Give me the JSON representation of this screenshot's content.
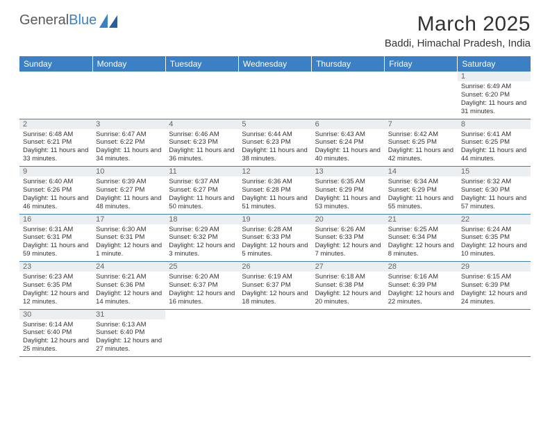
{
  "brand": {
    "word1": "General",
    "word2": "Blue"
  },
  "title": "March 2025",
  "location": "Baddi, Himachal Pradesh, India",
  "colors": {
    "accent": "#3b7fc4",
    "text": "#333333",
    "muted": "#666666",
    "headerRowBg": "#eceff1"
  },
  "dayHeaders": [
    "Sunday",
    "Monday",
    "Tuesday",
    "Wednesday",
    "Thursday",
    "Friday",
    "Saturday"
  ],
  "weeks": [
    [
      {
        "n": "",
        "sr": "",
        "ss": "",
        "dl": ""
      },
      {
        "n": "",
        "sr": "",
        "ss": "",
        "dl": ""
      },
      {
        "n": "",
        "sr": "",
        "ss": "",
        "dl": ""
      },
      {
        "n": "",
        "sr": "",
        "ss": "",
        "dl": ""
      },
      {
        "n": "",
        "sr": "",
        "ss": "",
        "dl": ""
      },
      {
        "n": "",
        "sr": "",
        "ss": "",
        "dl": ""
      },
      {
        "n": "1",
        "sr": "Sunrise: 6:49 AM",
        "ss": "Sunset: 6:20 PM",
        "dl": "Daylight: 11 hours and 31 minutes."
      }
    ],
    [
      {
        "n": "2",
        "sr": "Sunrise: 6:48 AM",
        "ss": "Sunset: 6:21 PM",
        "dl": "Daylight: 11 hours and 33 minutes."
      },
      {
        "n": "3",
        "sr": "Sunrise: 6:47 AM",
        "ss": "Sunset: 6:22 PM",
        "dl": "Daylight: 11 hours and 34 minutes."
      },
      {
        "n": "4",
        "sr": "Sunrise: 6:46 AM",
        "ss": "Sunset: 6:23 PM",
        "dl": "Daylight: 11 hours and 36 minutes."
      },
      {
        "n": "5",
        "sr": "Sunrise: 6:44 AM",
        "ss": "Sunset: 6:23 PM",
        "dl": "Daylight: 11 hours and 38 minutes."
      },
      {
        "n": "6",
        "sr": "Sunrise: 6:43 AM",
        "ss": "Sunset: 6:24 PM",
        "dl": "Daylight: 11 hours and 40 minutes."
      },
      {
        "n": "7",
        "sr": "Sunrise: 6:42 AM",
        "ss": "Sunset: 6:25 PM",
        "dl": "Daylight: 11 hours and 42 minutes."
      },
      {
        "n": "8",
        "sr": "Sunrise: 6:41 AM",
        "ss": "Sunset: 6:25 PM",
        "dl": "Daylight: 11 hours and 44 minutes."
      }
    ],
    [
      {
        "n": "9",
        "sr": "Sunrise: 6:40 AM",
        "ss": "Sunset: 6:26 PM",
        "dl": "Daylight: 11 hours and 46 minutes."
      },
      {
        "n": "10",
        "sr": "Sunrise: 6:39 AM",
        "ss": "Sunset: 6:27 PM",
        "dl": "Daylight: 11 hours and 48 minutes."
      },
      {
        "n": "11",
        "sr": "Sunrise: 6:37 AM",
        "ss": "Sunset: 6:27 PM",
        "dl": "Daylight: 11 hours and 50 minutes."
      },
      {
        "n": "12",
        "sr": "Sunrise: 6:36 AM",
        "ss": "Sunset: 6:28 PM",
        "dl": "Daylight: 11 hours and 51 minutes."
      },
      {
        "n": "13",
        "sr": "Sunrise: 6:35 AM",
        "ss": "Sunset: 6:29 PM",
        "dl": "Daylight: 11 hours and 53 minutes."
      },
      {
        "n": "14",
        "sr": "Sunrise: 6:34 AM",
        "ss": "Sunset: 6:29 PM",
        "dl": "Daylight: 11 hours and 55 minutes."
      },
      {
        "n": "15",
        "sr": "Sunrise: 6:32 AM",
        "ss": "Sunset: 6:30 PM",
        "dl": "Daylight: 11 hours and 57 minutes."
      }
    ],
    [
      {
        "n": "16",
        "sr": "Sunrise: 6:31 AM",
        "ss": "Sunset: 6:31 PM",
        "dl": "Daylight: 11 hours and 59 minutes."
      },
      {
        "n": "17",
        "sr": "Sunrise: 6:30 AM",
        "ss": "Sunset: 6:31 PM",
        "dl": "Daylight: 12 hours and 1 minute."
      },
      {
        "n": "18",
        "sr": "Sunrise: 6:29 AM",
        "ss": "Sunset: 6:32 PM",
        "dl": "Daylight: 12 hours and 3 minutes."
      },
      {
        "n": "19",
        "sr": "Sunrise: 6:28 AM",
        "ss": "Sunset: 6:33 PM",
        "dl": "Daylight: 12 hours and 5 minutes."
      },
      {
        "n": "20",
        "sr": "Sunrise: 6:26 AM",
        "ss": "Sunset: 6:33 PM",
        "dl": "Daylight: 12 hours and 7 minutes."
      },
      {
        "n": "21",
        "sr": "Sunrise: 6:25 AM",
        "ss": "Sunset: 6:34 PM",
        "dl": "Daylight: 12 hours and 8 minutes."
      },
      {
        "n": "22",
        "sr": "Sunrise: 6:24 AM",
        "ss": "Sunset: 6:35 PM",
        "dl": "Daylight: 12 hours and 10 minutes."
      }
    ],
    [
      {
        "n": "23",
        "sr": "Sunrise: 6:23 AM",
        "ss": "Sunset: 6:35 PM",
        "dl": "Daylight: 12 hours and 12 minutes."
      },
      {
        "n": "24",
        "sr": "Sunrise: 6:21 AM",
        "ss": "Sunset: 6:36 PM",
        "dl": "Daylight: 12 hours and 14 minutes."
      },
      {
        "n": "25",
        "sr": "Sunrise: 6:20 AM",
        "ss": "Sunset: 6:37 PM",
        "dl": "Daylight: 12 hours and 16 minutes."
      },
      {
        "n": "26",
        "sr": "Sunrise: 6:19 AM",
        "ss": "Sunset: 6:37 PM",
        "dl": "Daylight: 12 hours and 18 minutes."
      },
      {
        "n": "27",
        "sr": "Sunrise: 6:18 AM",
        "ss": "Sunset: 6:38 PM",
        "dl": "Daylight: 12 hours and 20 minutes."
      },
      {
        "n": "28",
        "sr": "Sunrise: 6:16 AM",
        "ss": "Sunset: 6:39 PM",
        "dl": "Daylight: 12 hours and 22 minutes."
      },
      {
        "n": "29",
        "sr": "Sunrise: 6:15 AM",
        "ss": "Sunset: 6:39 PM",
        "dl": "Daylight: 12 hours and 24 minutes."
      }
    ],
    [
      {
        "n": "30",
        "sr": "Sunrise: 6:14 AM",
        "ss": "Sunset: 6:40 PM",
        "dl": "Daylight: 12 hours and 25 minutes."
      },
      {
        "n": "31",
        "sr": "Sunrise: 6:13 AM",
        "ss": "Sunset: 6:40 PM",
        "dl": "Daylight: 12 hours and 27 minutes."
      },
      {
        "n": "",
        "sr": "",
        "ss": "",
        "dl": ""
      },
      {
        "n": "",
        "sr": "",
        "ss": "",
        "dl": ""
      },
      {
        "n": "",
        "sr": "",
        "ss": "",
        "dl": ""
      },
      {
        "n": "",
        "sr": "",
        "ss": "",
        "dl": ""
      },
      {
        "n": "",
        "sr": "",
        "ss": "",
        "dl": ""
      }
    ]
  ]
}
